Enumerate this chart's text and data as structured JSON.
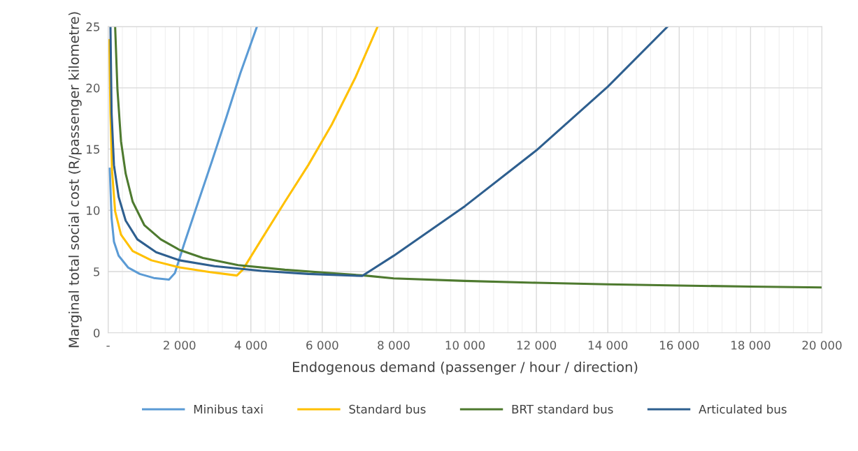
{
  "chart_data": {
    "type": "line",
    "xlabel": "Endogenous demand (passenger / hour / direction)",
    "ylabel": "Marginal total social cost (R/passenger kilometre)",
    "xlim": [
      0,
      20000
    ],
    "ylim": [
      0,
      25
    ],
    "xticks": [
      {
        "value": 0,
        "label": "-"
      },
      {
        "value": 2000,
        "label": "2 000"
      },
      {
        "value": 4000,
        "label": "4 000"
      },
      {
        "value": 6000,
        "label": "6 000"
      },
      {
        "value": 8000,
        "label": "8 000"
      },
      {
        "value": 10000,
        "label": "10 000"
      },
      {
        "value": 12000,
        "label": "12 000"
      },
      {
        "value": 14000,
        "label": "14 000"
      },
      {
        "value": 16000,
        "label": "16 000"
      },
      {
        "value": 18000,
        "label": "18 000"
      },
      {
        "value": 20000,
        "label": "20 000"
      }
    ],
    "yticks": [
      0,
      5,
      10,
      15,
      20,
      25
    ],
    "grid": true,
    "legend": "bottom",
    "marker": "none",
    "line_style": "solid",
    "series": [
      {
        "name": "Minibus taxi",
        "color": "#5b9bd5",
        "x": [
          46,
          98,
          164,
          295,
          558,
          886,
          1280,
          1706,
          1870,
          2130,
          2526,
          2920,
          3313,
          3706,
          4170
        ],
        "values": [
          13.4,
          9.35,
          7.44,
          6.3,
          5.34,
          4.81,
          4.48,
          4.35,
          4.87,
          7.25,
          10.7,
          14.1,
          17.6,
          21.2,
          25
        ]
      },
      {
        "name": "Standard bus",
        "color": "#ffc000",
        "x": [
          33,
          66,
          111,
          197,
          361,
          689,
          1214,
          2001,
          2854,
          3608,
          3772,
          4297,
          4953,
          5609,
          6265,
          6921,
          7550
        ],
        "values": [
          23.9,
          17.9,
          13.2,
          9.92,
          8.02,
          6.68,
          5.92,
          5.34,
          4.96,
          4.68,
          5.15,
          7.63,
          10.7,
          13.7,
          17,
          20.8,
          25
        ]
      },
      {
        "name": "BRT standard bus",
        "color": "#4e7a2f",
        "x": [
          197,
          262,
          361,
          492,
          689,
          1017,
          1476,
          2001,
          2657,
          3641,
          4953,
          6265,
          7183,
          8000,
          10000,
          12000,
          14000,
          16000,
          18000,
          20000
        ],
        "values": [
          25,
          19.85,
          15.65,
          13,
          10.7,
          8.78,
          7.63,
          6.77,
          6.11,
          5.53,
          5.15,
          4.87,
          4.68,
          4.44,
          4.24,
          4.09,
          3.96,
          3.86,
          3.78,
          3.71
        ]
      },
      {
        "name": "Articulated bus",
        "color": "#2e5f8f",
        "x": [
          66,
          98,
          164,
          295,
          492,
          820,
          1345,
          2001,
          2985,
          4297,
          5609,
          7118,
          8000,
          10000,
          12000,
          14000,
          15675
        ],
        "values": [
          25,
          17.9,
          13.7,
          11.1,
          9.16,
          7.63,
          6.58,
          5.92,
          5.44,
          5.06,
          4.81,
          4.64,
          6.29,
          10.35,
          14.9,
          20.1,
          25
        ]
      }
    ]
  }
}
